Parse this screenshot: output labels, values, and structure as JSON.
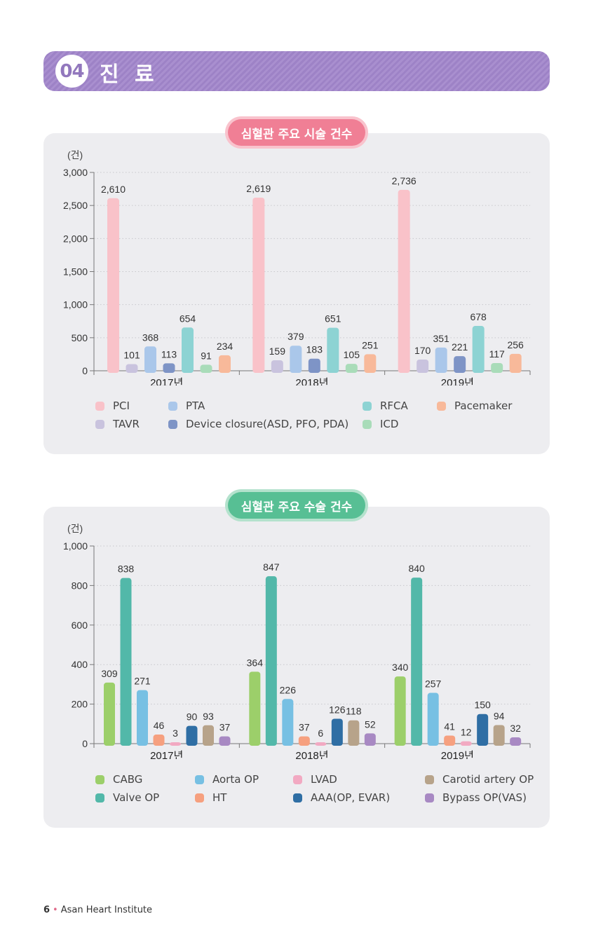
{
  "banner": {
    "number": "04",
    "title": "진 료"
  },
  "chart1": {
    "pill": "심혈관 주요 시술 건수",
    "unit": "(건)"
  },
  "chart2": {
    "pill": "심혈관 주요 수술 건수",
    "unit": "(건)"
  },
  "chart_data": [
    {
      "type": "bar",
      "title": "심혈관 주요 시술 건수",
      "ylabel": "(건)",
      "ylim": [
        0,
        3000
      ],
      "yticks": [
        "0",
        "500",
        "1,000",
        "1,500",
        "2,000",
        "2,500",
        "3,000"
      ],
      "categories": [
        "2017년",
        "2018년",
        "2019년"
      ],
      "legend": "bottom",
      "grid": true,
      "series": [
        {
          "name": "PCI",
          "color": "#f9c2c9",
          "values": [
            2610,
            2619,
            2736
          ],
          "labels": [
            "2,610",
            "2,619",
            "2,736"
          ]
        },
        {
          "name": "TAVR",
          "color": "#c9c3de",
          "values": [
            101,
            159,
            170
          ],
          "labels": [
            "101",
            "159",
            "170"
          ]
        },
        {
          "name": "PTA",
          "color": "#aac7ea",
          "values": [
            368,
            379,
            351
          ],
          "labels": [
            "368",
            "379",
            "351"
          ]
        },
        {
          "name": "Device closure(ASD, PFO, PDA)",
          "color": "#7e94c6",
          "values": [
            113,
            183,
            221
          ],
          "labels": [
            "113",
            "183",
            "221"
          ]
        },
        {
          "name": "RFCA",
          "color": "#8dd3d3",
          "values": [
            654,
            651,
            678
          ],
          "labels": [
            "654",
            "651",
            "678"
          ]
        },
        {
          "name": "ICD",
          "color": "#a9dcb9",
          "values": [
            91,
            105,
            117
          ],
          "labels": [
            "91",
            "105",
            "117"
          ]
        },
        {
          "name": "Pacemaker",
          "color": "#f8b99a",
          "values": [
            234,
            251,
            256
          ],
          "labels": [
            "234",
            "251",
            "256"
          ]
        }
      ],
      "legend_rows": [
        [
          "PCI",
          "PTA",
          "RFCA",
          "Pacemaker"
        ],
        [
          "TAVR",
          "Device closure(ASD, PFO, PDA)",
          "ICD"
        ]
      ]
    },
    {
      "type": "bar",
      "title": "심혈관 주요 수술 건수",
      "ylabel": "(건)",
      "ylim": [
        0,
        1000
      ],
      "yticks": [
        "0",
        "200",
        "400",
        "600",
        "800",
        "1,000"
      ],
      "categories": [
        "2017년",
        "2018년",
        "2019년"
      ],
      "legend": "bottom",
      "grid": true,
      "series": [
        {
          "name": "CABG",
          "color": "#9ccf6a",
          "values": [
            309,
            364,
            340
          ],
          "labels": [
            "309",
            "364",
            "340"
          ]
        },
        {
          "name": "Valve OP",
          "color": "#52b8a9",
          "values": [
            838,
            847,
            840
          ],
          "labels": [
            "838",
            "847",
            "840"
          ]
        },
        {
          "name": "Aorta OP",
          "color": "#77c0e3",
          "values": [
            271,
            226,
            257
          ],
          "labels": [
            "271",
            "226",
            "257"
          ]
        },
        {
          "name": "HT",
          "color": "#f6a07f",
          "values": [
            46,
            37,
            41
          ],
          "labels": [
            "46",
            "37",
            "41"
          ]
        },
        {
          "name": "LVAD",
          "color": "#f2a9c2",
          "values": [
            3,
            6,
            12
          ],
          "labels": [
            "3",
            "6",
            "12"
          ]
        },
        {
          "name": "AAA(OP, EVAR)",
          "color": "#2f6ea4",
          "values": [
            90,
            126,
            150
          ],
          "labels": [
            "90",
            "126",
            "150"
          ]
        },
        {
          "name": "Carotid artery OP",
          "color": "#b7a38a",
          "values": [
            93,
            118,
            94
          ],
          "labels": [
            "93",
            "118",
            "94"
          ]
        },
        {
          "name": "Bypass OP(VAS)",
          "color": "#a889c3",
          "values": [
            37,
            52,
            32
          ],
          "labels": [
            "37",
            "52",
            "32"
          ]
        }
      ],
      "legend_rows": [
        [
          "CABG",
          "Aorta OP",
          "LVAD",
          "Carotid artery OP"
        ],
        [
          "Valve OP",
          "HT",
          "AAA(OP, EVAR)",
          "Bypass OP(VAS)"
        ]
      ]
    }
  ],
  "footer": {
    "page": "6",
    "name": "Asan Heart Institute"
  }
}
